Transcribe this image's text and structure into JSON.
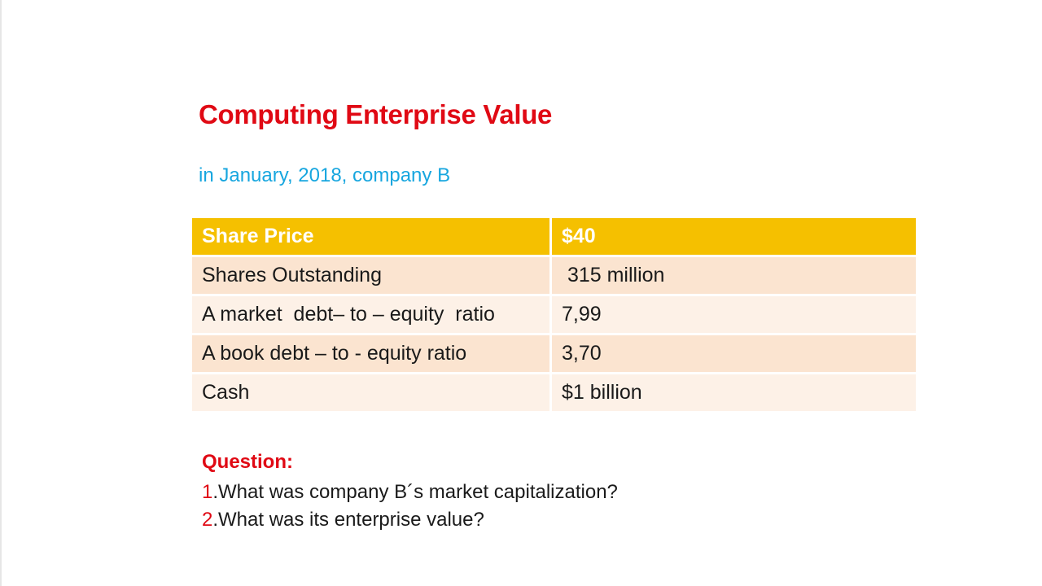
{
  "slide": {
    "title": "Computing Enterprise Value",
    "subtitle": "in January, 2018, company B"
  },
  "table": {
    "header": {
      "label": "Share Price",
      "value": "$40"
    },
    "rows": [
      {
        "label": "Shares Outstanding",
        "value": " 315 million"
      },
      {
        "label": "A market  debt– to – equity  ratio",
        "value": "7,99"
      },
      {
        "label": "A book debt – to - equity ratio",
        "value": "3,70"
      },
      {
        "label": "Cash",
        "value": "$1 billion"
      }
    ]
  },
  "questions": {
    "heading": "Question:",
    "items": [
      {
        "number": "1",
        "text": ".What was company B´s market capitalization?"
      },
      {
        "number": "2",
        "text": ".What was its enterprise value?"
      }
    ]
  },
  "colors": {
    "title": "#e00914",
    "subtitle": "#17a6df",
    "header_fill": "#f5c000",
    "row_fill_dark": "#fbe4d0",
    "row_fill_light": "#fdf1e7"
  }
}
